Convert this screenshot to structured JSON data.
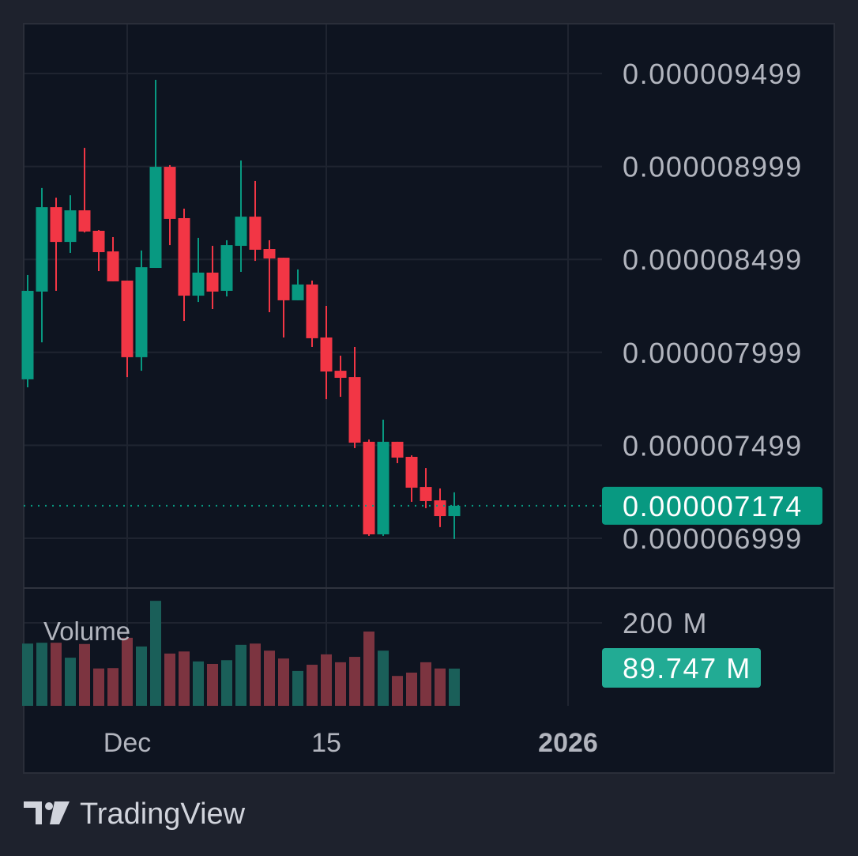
{
  "brand": {
    "name": "TradingView"
  },
  "colors": {
    "up": "#089981",
    "down": "#f23645",
    "up_volume": "#1a5f59",
    "down_volume": "#7c3440",
    "last_price_label": "#089981",
    "volume_label": "#22ab94",
    "background": "#0e1420",
    "frame": "#1e222d"
  },
  "chart_data": {
    "type": "candlestick",
    "title": "",
    "xlabel": "",
    "ylabel": "",
    "grid": true,
    "price_axis": {
      "position": "right",
      "ticks": [
        9.499e-06,
        8.999e-06,
        8.499e-06,
        7.999e-06,
        7.499e-06,
        6.999e-06
      ],
      "tick_labels": [
        "0.000009499",
        "0.000008999",
        "0.000008499",
        "0.000007999",
        "0.000007499",
        "0.000006999"
      ],
      "last_price": 7.174e-06,
      "last_price_label": "0.000007174"
    },
    "time_axis": {
      "tick_labels": [
        {
          "label": "Dec",
          "date": "2025-12-01",
          "bold": false
        },
        {
          "label": "15",
          "date": "2025-12-15",
          "bold": false
        },
        {
          "label": "2026",
          "date": "2026-01-01",
          "bold": true
        }
      ]
    },
    "candles_fields": [
      "date",
      "open",
      "high",
      "low",
      "close"
    ],
    "candles": [
      [
        "2025-11-24",
        7.854e-06,
        8.415e-06,
        7.811e-06,
        8.33e-06
      ],
      [
        "2025-11-25",
        8.326e-06,
        8.883e-06,
        8.053e-06,
        8.78e-06
      ],
      [
        "2025-11-26",
        8.78e-06,
        8.831e-06,
        8.33e-06,
        8.593e-06
      ],
      [
        "2025-11-27",
        8.593e-06,
        8.844e-06,
        8.534e-06,
        8.763e-06
      ],
      [
        "2025-11-28",
        8.763e-06,
        9.099e-06,
        8.644e-06,
        8.649e-06
      ],
      [
        "2025-11-29",
        8.653e-06,
        8.657e-06,
        8.436e-06,
        8.538e-06
      ],
      [
        "2025-11-30",
        8.542e-06,
        8.619e-06,
        8.381e-06,
        8.381e-06
      ],
      [
        "2025-12-01",
        8.385e-06,
        8.385e-06,
        7.866e-06,
        7.973e-06
      ],
      [
        "2025-12-02",
        7.973e-06,
        8.547e-06,
        7.9e-06,
        8.457e-06
      ],
      [
        "2025-12-03",
        8.453e-06,
        9.465e-06,
        8.453e-06,
        8.997e-06
      ],
      [
        "2025-12-04",
        8.997e-06,
        9.006e-06,
        8.576e-06,
        8.717e-06
      ],
      [
        "2025-12-05",
        8.721e-06,
        8.772e-06,
        8.168e-06,
        8.304e-06
      ],
      [
        "2025-12-06",
        8.304e-06,
        8.615e-06,
        8.27e-06,
        8.428e-06
      ],
      [
        "2025-12-07",
        8.428e-06,
        8.572e-06,
        8.232e-06,
        8.326e-06
      ],
      [
        "2025-12-08",
        8.33e-06,
        8.602e-06,
        8.3e-06,
        8.576e-06
      ],
      [
        "2025-12-09",
        8.572e-06,
        9.031e-06,
        8.432e-06,
        8.729e-06
      ],
      [
        "2025-12-10",
        8.729e-06,
        8.921e-06,
        8.491e-06,
        8.551e-06
      ],
      [
        "2025-12-11",
        8.555e-06,
        8.602e-06,
        8.215e-06,
        8.504e-06
      ],
      [
        "2025-12-12",
        8.508e-06,
        8.508e-06,
        8.079e-06,
        8.279e-06
      ],
      [
        "2025-12-13",
        8.279e-06,
        8.445e-06,
        8.279e-06,
        8.364e-06
      ],
      [
        "2025-12-14",
        8.364e-06,
        8.385e-06,
        8.028e-06,
        8.075e-06
      ],
      [
        "2025-12-15",
        8.079e-06,
        8.249e-06,
        7.747e-06,
        7.896e-06
      ],
      [
        "2025-12-16",
        7.9e-06,
        7.981e-06,
        7.76e-06,
        7.862e-06
      ],
      [
        "2025-12-17",
        7.866e-06,
        8.028e-06,
        7.484e-06,
        7.513e-06
      ],
      [
        "2025-12-18",
        7.518e-06,
        7.53e-06,
        7.012e-06,
        7.02e-06
      ],
      [
        "2025-12-19",
        7.02e-06,
        7.637e-06,
        7.012e-06,
        7.518e-06
      ],
      [
        "2025-12-20",
        7.518e-06,
        7.518e-06,
        7.403e-06,
        7.433e-06
      ],
      [
        "2025-12-21",
        7.437e-06,
        7.445e-06,
        7.195e-06,
        7.271e-06
      ],
      [
        "2025-12-22",
        7.275e-06,
        7.377e-06,
        7.161e-06,
        7.199e-06
      ],
      [
        "2025-12-23",
        7.203e-06,
        7.267e-06,
        7.059e-06,
        7.118e-06
      ],
      [
        "2025-12-24",
        7.118e-06,
        7.246e-06,
        6.995e-06,
        7.174e-06
      ]
    ],
    "volume": {
      "label": "Volume",
      "axis_tick_label": "200 M",
      "axis_tick": 200000000,
      "last_label": "89.747 M",
      "values": [
        150000000,
        152000000,
        152000000,
        116000000,
        149000000,
        90000000,
        91000000,
        164000000,
        143000000,
        253000000,
        126000000,
        131000000,
        107000000,
        101000000,
        110000000,
        147000000,
        150000000,
        133000000,
        114000000,
        84000000,
        99000000,
        124000000,
        105000000,
        118000000,
        179000000,
        133000000,
        72000000,
        80000000,
        105000000,
        90000000,
        89747000
      ]
    }
  }
}
